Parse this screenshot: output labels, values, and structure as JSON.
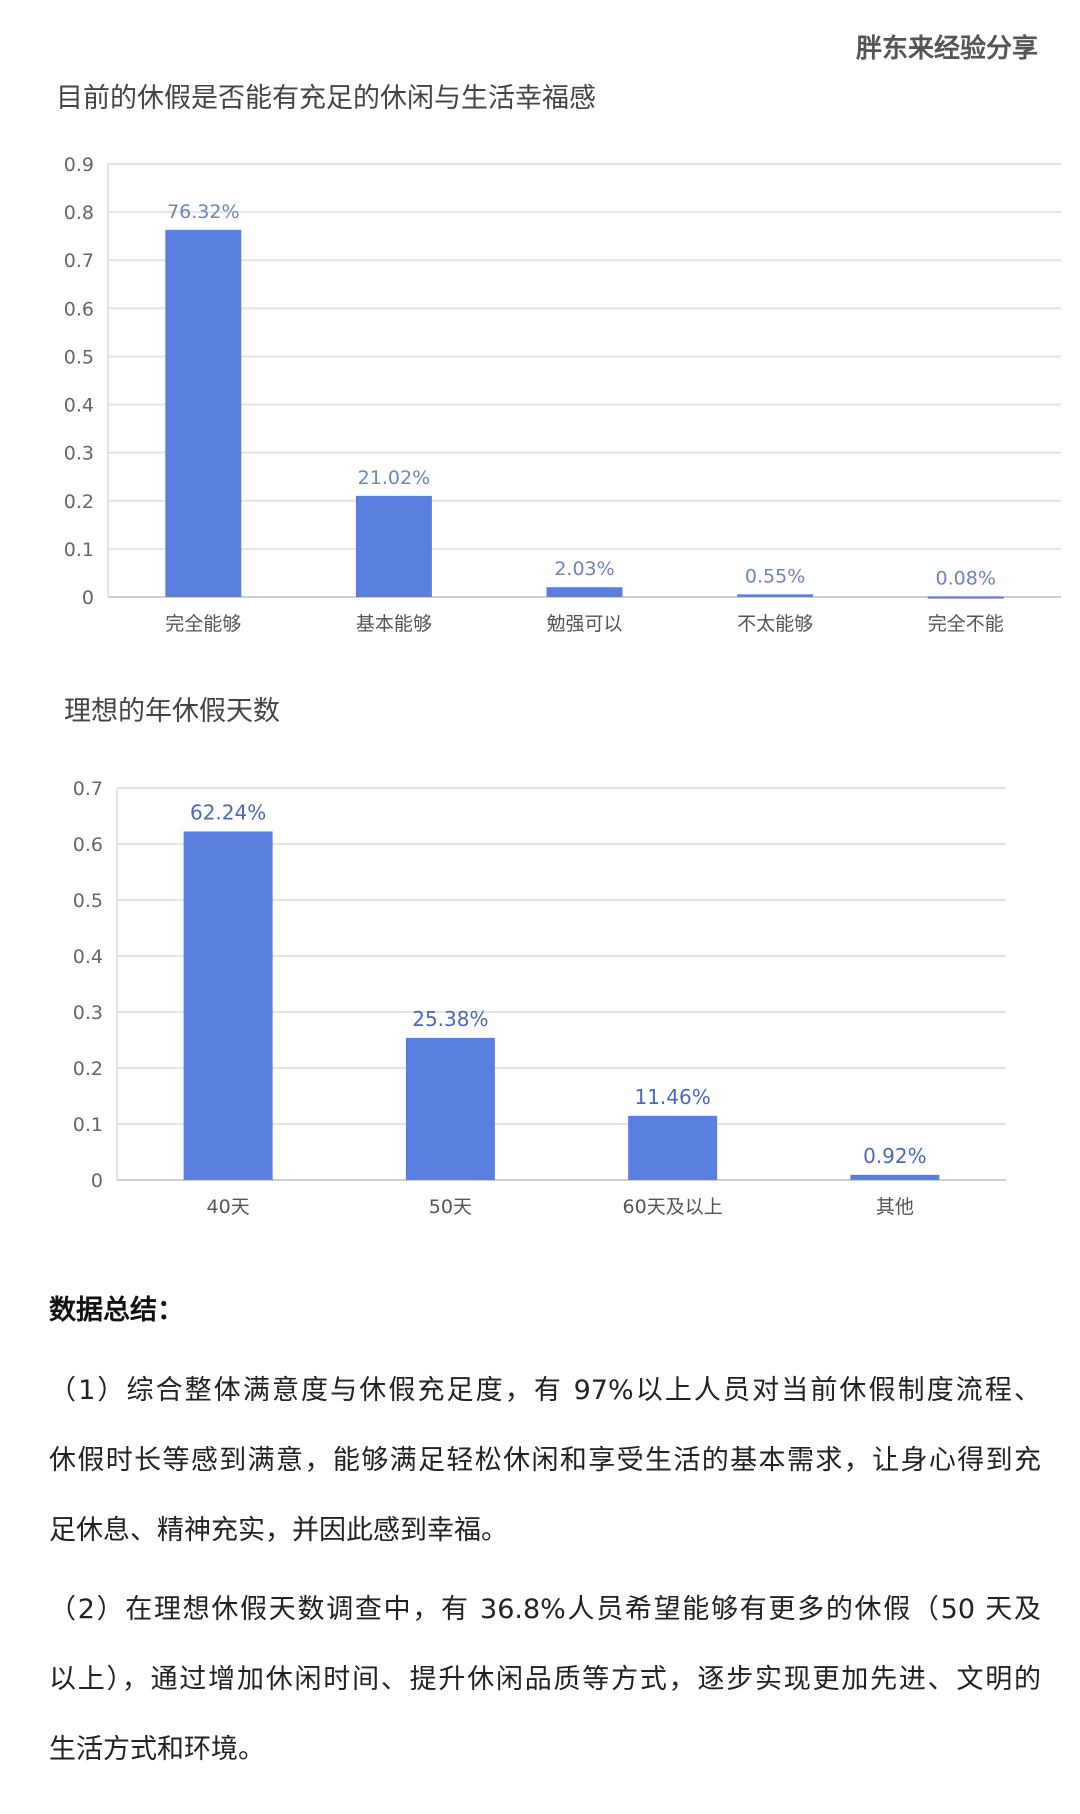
{
  "watermark": "胖东来经验分享",
  "chart_data": [
    {
      "type": "bar",
      "title": "目前的休假是否能有充足的休闲与生活幸福感",
      "categories": [
        "完全能够",
        "基本能够",
        "勉强可以",
        "不太能够",
        "完全不能"
      ],
      "values": [
        0.7632,
        0.2102,
        0.0203,
        0.0055,
        0.0008
      ],
      "data_labels": [
        "76.32%",
        "21.02%",
        "2.03%",
        "0.55%",
        "0.08%"
      ],
      "ylim": [
        0,
        0.9
      ],
      "yticks": [
        "0",
        "0.1",
        "0.2",
        "0.3",
        "0.4",
        "0.5",
        "0.6",
        "0.7",
        "0.8",
        "0.9"
      ],
      "grid": true,
      "bar_color": "#5b7fe0",
      "label_color": "#6f83c4"
    },
    {
      "type": "bar",
      "title": "理想的年休假天数",
      "categories": [
        "40天",
        "50天",
        "60天及以上",
        "其他"
      ],
      "values": [
        0.6224,
        0.2538,
        0.1146,
        0.0092
      ],
      "data_labels": [
        "62.24%",
        "25.38%",
        "11.46%",
        "0.92%"
      ],
      "ylim": [
        0,
        0.7
      ],
      "yticks": [
        "0",
        "0.1",
        "0.2",
        "0.3",
        "0.4",
        "0.5",
        "0.6",
        "0.7"
      ],
      "grid": true,
      "bar_color": "#5b7fe0",
      "label_color": "#4a67c2"
    }
  ],
  "summary": {
    "title": "数据总结：",
    "paragraphs": [
      [
        "（1）综合整体满意度与休假充足度，有 97%以上人员对当前休假制度流程、",
        "休假时长等感到满意，能够满足轻松休闲和享受生活的基本需求，让身心得到充",
        "足休息、精神充实，并因此感到幸福。"
      ],
      [
        "（2）在理想休假天数调查中，有 36.8%人员希望能够有更多的休假（50 天及",
        "以上），通过增加休闲时间、提升休闲品质等方式，逐步实现更加先进、文明的",
        "生活方式和环境。"
      ]
    ]
  }
}
